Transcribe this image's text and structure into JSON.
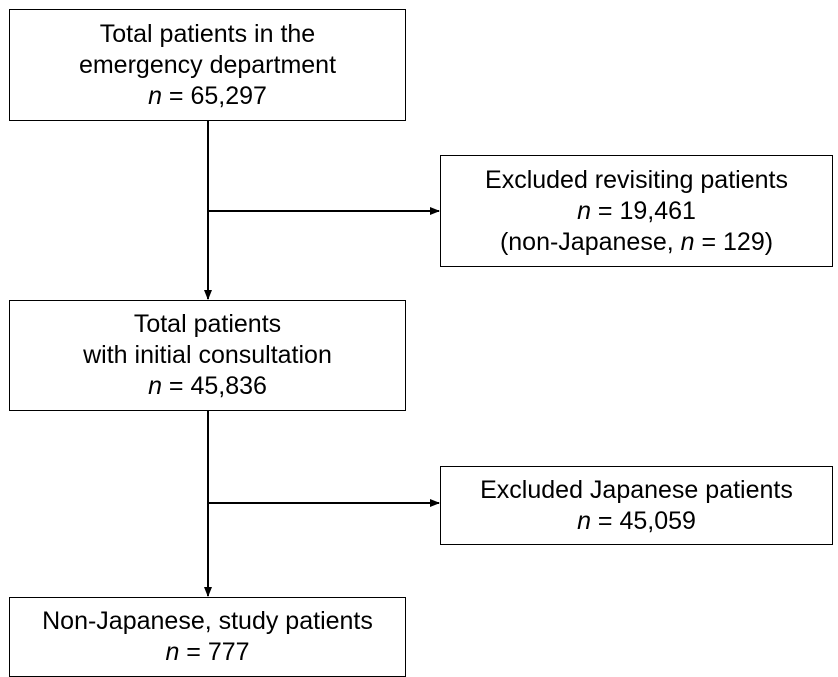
{
  "boxes": {
    "total": {
      "line1": "Total patients in the",
      "line2": "emergency department",
      "n_symbol": "n",
      "n_value": " = 65,297"
    },
    "revisit": {
      "line1": "Excluded revisiting patients",
      "n_symbol": "n",
      "n_value": " = 19,461",
      "sub_prefix": "(non-Japanese, ",
      "sub_n_symbol": "n",
      "sub_value": " = 129)"
    },
    "initial": {
      "line1": "Total patients",
      "line2": "with initial consultation",
      "n_symbol": "n",
      "n_value": " = 45,836"
    },
    "japanese": {
      "line1": "Excluded Japanese patients",
      "n_symbol": "n",
      "n_value": " = 45,059"
    },
    "study": {
      "line1": "Non-Japanese, study patients",
      "n_symbol": "n",
      "n_value": " = 777"
    }
  },
  "colors": {
    "line": "#000000",
    "border": "#000000",
    "background": "#ffffff"
  }
}
